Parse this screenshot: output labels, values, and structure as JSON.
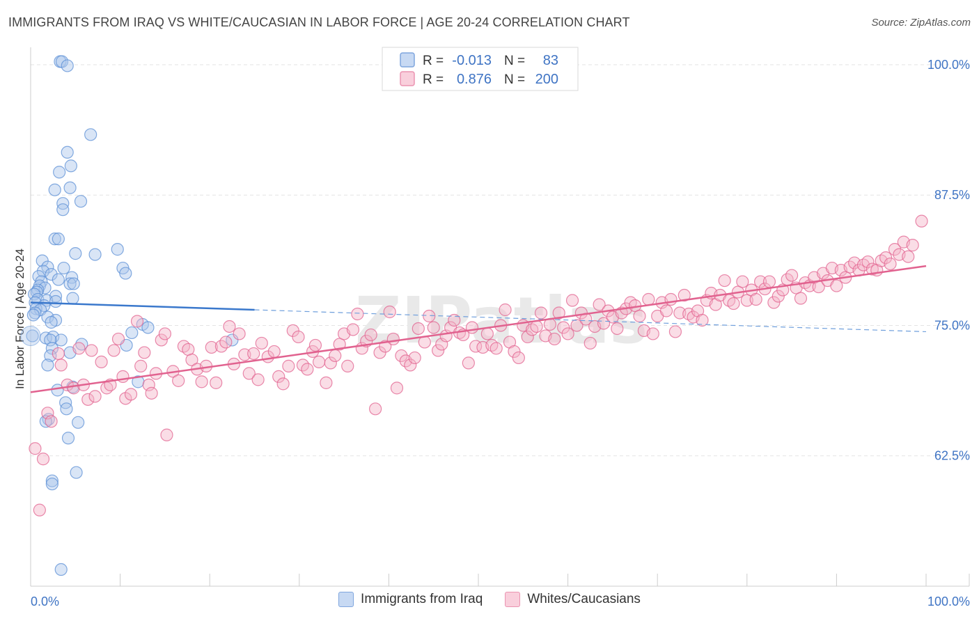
{
  "title": "IMMIGRANTS FROM IRAQ VS WHITE/CAUCASIAN IN LABOR FORCE | AGE 20-24 CORRELATION CHART",
  "source": "Source: ZipAtlas.com",
  "watermark": "ZIPatlas",
  "colors": {
    "blue": "#5b8fd6",
    "blue_fill": "#aac6ec",
    "pink": "#e1628f",
    "pink_fill": "#f4b4c8",
    "axis_label": "#3f74c4"
  },
  "legend_box": [
    {
      "r_label": "R =",
      "r_value": "-0.013",
      "n_label": "N =",
      "n_value": "83"
    },
    {
      "r_label": "R =",
      "r_value": "0.876",
      "n_label": "N =",
      "n_value": "200"
    }
  ],
  "chart_data": {
    "type": "scatter",
    "xlabel": "",
    "ylabel": "In Labor Force | Age 20-24",
    "xlim": [
      0,
      100
    ],
    "ylim": [
      50,
      103
    ],
    "x_tick_labels": [
      "0.0%",
      "100.0%"
    ],
    "y_tick_labels": [
      "100.0%",
      "87.5%",
      "75.0%",
      "62.5%"
    ],
    "y_ticks": [
      100,
      87.5,
      75,
      62.5
    ],
    "legend_position": "top-center",
    "series": [
      {
        "name": "Immigrants from Iraq",
        "color": "#5b8fd6",
        "R": -0.013,
        "N": 83,
        "trend_solid": [
          [
            0,
            77.2
          ],
          [
            25,
            76.5
          ]
        ],
        "trend_dashed": [
          [
            25,
            76.5
          ],
          [
            100,
            74.4
          ]
        ],
        "points": [
          [
            3.3,
            100.3
          ],
          [
            3.5,
            100.3
          ],
          [
            4.1,
            99.9
          ],
          [
            6.7,
            93.3
          ],
          [
            4.1,
            91.6
          ],
          [
            4.5,
            90.3
          ],
          [
            3.2,
            89.7
          ],
          [
            2.7,
            88.0
          ],
          [
            4.4,
            88.2
          ],
          [
            3.6,
            86.7
          ],
          [
            5.6,
            86.9
          ],
          [
            3.6,
            86.1
          ],
          [
            2.7,
            83.3
          ],
          [
            3.1,
            83.3
          ],
          [
            5.0,
            81.9
          ],
          [
            7.2,
            81.8
          ],
          [
            9.7,
            82.3
          ],
          [
            1.3,
            81.2
          ],
          [
            10.3,
            80.5
          ],
          [
            1.9,
            80.6
          ],
          [
            3.7,
            80.5
          ],
          [
            1.4,
            80.2
          ],
          [
            10.6,
            80.0
          ],
          [
            2.3,
            79.9
          ],
          [
            0.9,
            79.7
          ],
          [
            4.6,
            79.6
          ],
          [
            3.1,
            79.4
          ],
          [
            1.2,
            79.2
          ],
          [
            4.4,
            79.0
          ],
          [
            4.8,
            79.0
          ],
          [
            1.0,
            78.8
          ],
          [
            1.6,
            78.6
          ],
          [
            0.8,
            78.4
          ],
          [
            0.7,
            78.2
          ],
          [
            0.4,
            78.0
          ],
          [
            2.8,
            77.8
          ],
          [
            4.7,
            77.6
          ],
          [
            0.8,
            77.5
          ],
          [
            1.8,
            77.4
          ],
          [
            2.8,
            77.3
          ],
          [
            0.5,
            77.2
          ],
          [
            1.5,
            76.9
          ],
          [
            0.6,
            76.6
          ],
          [
            1.1,
            76.5
          ],
          [
            0.5,
            76.2
          ],
          [
            0.3,
            76.0
          ],
          [
            1.9,
            75.8
          ],
          [
            2.8,
            75.5
          ],
          [
            2.3,
            75.3
          ],
          [
            12.5,
            75.1
          ],
          [
            13.1,
            74.8
          ],
          [
            11.3,
            74.3
          ],
          [
            0.2,
            74.0
          ],
          [
            1.7,
            73.8
          ],
          [
            2.5,
            73.9
          ],
          [
            3.4,
            73.6
          ],
          [
            2.2,
            73.6
          ],
          [
            5.7,
            73.2
          ],
          [
            10.7,
            73.1
          ],
          [
            22.5,
            73.6
          ],
          [
            2.4,
            72.8
          ],
          [
            4.4,
            72.4
          ],
          [
            2.2,
            72.1
          ],
          [
            1.9,
            71.2
          ],
          [
            12.0,
            69.6
          ],
          [
            4.7,
            69.1
          ],
          [
            3.0,
            68.8
          ],
          [
            3.9,
            67.6
          ],
          [
            4.0,
            67.0
          ],
          [
            2.0,
            66.0
          ],
          [
            1.7,
            65.8
          ],
          [
            5.3,
            65.7
          ],
          [
            4.2,
            64.2
          ],
          [
            2.4,
            60.1
          ],
          [
            2.4,
            59.8
          ],
          [
            5.1,
            60.9
          ],
          [
            3.4,
            51.6
          ]
        ]
      },
      {
        "name": "Whites/Caucasians",
        "color": "#e1628f",
        "R": 0.876,
        "N": 200,
        "trend_solid": [
          [
            0,
            68.6
          ],
          [
            100,
            80.7
          ]
        ],
        "points": [
          [
            0.5,
            63.2
          ],
          [
            1.4,
            62.2
          ],
          [
            1.0,
            57.3
          ],
          [
            1.9,
            66.6
          ],
          [
            2.3,
            65.8
          ],
          [
            3.1,
            72.3
          ],
          [
            3.4,
            71.2
          ],
          [
            4.1,
            69.3
          ],
          [
            4.8,
            69.0
          ],
          [
            5.4,
            72.8
          ],
          [
            5.9,
            69.3
          ],
          [
            6.4,
            67.9
          ],
          [
            6.8,
            72.6
          ],
          [
            7.2,
            68.2
          ],
          [
            7.9,
            71.5
          ],
          [
            8.5,
            69.0
          ],
          [
            8.9,
            69.3
          ],
          [
            9.3,
            72.6
          ],
          [
            9.8,
            73.7
          ],
          [
            10.3,
            70.1
          ],
          [
            10.6,
            68.0
          ],
          [
            11.2,
            68.4
          ],
          [
            11.9,
            75.4
          ],
          [
            12.3,
            71.1
          ],
          [
            12.7,
            72.4
          ],
          [
            13.2,
            69.3
          ],
          [
            13.5,
            68.5
          ],
          [
            14.0,
            70.4
          ],
          [
            14.6,
            73.6
          ],
          [
            15.0,
            74.2
          ],
          [
            15.2,
            64.5
          ],
          [
            15.9,
            70.6
          ],
          [
            16.5,
            69.7
          ],
          [
            17.1,
            73.0
          ],
          [
            17.6,
            72.7
          ],
          [
            18.0,
            71.7
          ],
          [
            18.6,
            70.8
          ],
          [
            19.1,
            69.6
          ],
          [
            19.6,
            71.1
          ],
          [
            20.2,
            72.9
          ],
          [
            20.7,
            69.5
          ],
          [
            21.3,
            73.0
          ],
          [
            21.8,
            73.4
          ],
          [
            22.2,
            74.9
          ],
          [
            22.7,
            71.3
          ],
          [
            23.3,
            74.2
          ],
          [
            23.9,
            72.2
          ],
          [
            24.4,
            70.4
          ],
          [
            24.9,
            72.3
          ],
          [
            25.4,
            69.8
          ],
          [
            25.8,
            73.3
          ],
          [
            26.5,
            72.0
          ],
          [
            27.2,
            72.5
          ],
          [
            27.7,
            70.1
          ],
          [
            28.2,
            69.4
          ],
          [
            28.8,
            71.1
          ],
          [
            29.3,
            74.5
          ],
          [
            29.9,
            73.9
          ],
          [
            30.4,
            71.2
          ],
          [
            30.9,
            70.8
          ],
          [
            31.5,
            72.5
          ],
          [
            31.8,
            73.1
          ],
          [
            32.2,
            71.5
          ],
          [
            33.0,
            69.5
          ],
          [
            33.5,
            71.4
          ],
          [
            34.0,
            72.1
          ],
          [
            34.5,
            73.2
          ],
          [
            35.0,
            74.2
          ],
          [
            35.4,
            71.1
          ],
          [
            36.0,
            74.6
          ],
          [
            36.5,
            76.1
          ],
          [
            37.0,
            72.8
          ],
          [
            37.5,
            73.5
          ],
          [
            38.0,
            74.1
          ],
          [
            38.5,
            67.0
          ],
          [
            39.0,
            72.4
          ],
          [
            39.6,
            73.0
          ],
          [
            40.1,
            76.3
          ],
          [
            40.5,
            73.7
          ],
          [
            40.9,
            69.0
          ],
          [
            41.4,
            72.1
          ],
          [
            41.9,
            71.6
          ],
          [
            42.4,
            71.2
          ],
          [
            42.9,
            71.9
          ],
          [
            43.3,
            74.7
          ],
          [
            44.0,
            73.4
          ],
          [
            44.5,
            75.9
          ],
          [
            45.0,
            74.8
          ],
          [
            45.5,
            72.6
          ],
          [
            45.9,
            73.2
          ],
          [
            46.4,
            74.0
          ],
          [
            46.9,
            74.8
          ],
          [
            47.3,
            75.5
          ],
          [
            47.9,
            74.3
          ],
          [
            48.3,
            74.1
          ],
          [
            48.9,
            71.4
          ],
          [
            49.3,
            74.8
          ],
          [
            49.7,
            73.0
          ],
          [
            50.5,
            72.9
          ],
          [
            51.0,
            74.2
          ],
          [
            51.5,
            73.1
          ],
          [
            52.0,
            72.8
          ],
          [
            52.5,
            75.0
          ],
          [
            53.0,
            76.5
          ],
          [
            53.5,
            73.4
          ],
          [
            54.0,
            72.5
          ],
          [
            54.5,
            71.9
          ],
          [
            55.0,
            75.0
          ],
          [
            55.5,
            73.9
          ],
          [
            56.0,
            74.6
          ],
          [
            56.5,
            74.9
          ],
          [
            57.0,
            76.2
          ],
          [
            57.5,
            74.0
          ],
          [
            58.0,
            75.1
          ],
          [
            58.5,
            73.7
          ],
          [
            59.0,
            76.2
          ],
          [
            59.5,
            74.8
          ],
          [
            60.0,
            74.2
          ],
          [
            60.5,
            77.4
          ],
          [
            61.0,
            75.0
          ],
          [
            61.5,
            76.2
          ],
          [
            62.0,
            75.6
          ],
          [
            62.5,
            73.3
          ],
          [
            63.0,
            74.9
          ],
          [
            63.5,
            77.0
          ],
          [
            64.0,
            75.2
          ],
          [
            64.5,
            76.4
          ],
          [
            65.0,
            75.8
          ],
          [
            65.5,
            74.7
          ],
          [
            66.0,
            76.2
          ],
          [
            66.5,
            76.6
          ],
          [
            67.0,
            77.2
          ],
          [
            67.5,
            76.9
          ],
          [
            68.0,
            75.9
          ],
          [
            68.5,
            74.5
          ],
          [
            69.0,
            77.5
          ],
          [
            69.5,
            74.2
          ],
          [
            70.0,
            75.9
          ],
          [
            70.5,
            77.2
          ],
          [
            71.0,
            76.4
          ],
          [
            71.5,
            77.5
          ],
          [
            72.0,
            74.4
          ],
          [
            72.5,
            76.2
          ],
          [
            73.0,
            77.9
          ],
          [
            73.5,
            76.1
          ],
          [
            74.0,
            75.8
          ],
          [
            74.5,
            76.4
          ],
          [
            75.0,
            75.5
          ],
          [
            75.5,
            77.4
          ],
          [
            76.0,
            78.1
          ],
          [
            76.5,
            77.0
          ],
          [
            77.0,
            77.9
          ],
          [
            77.5,
            79.3
          ],
          [
            78.0,
            77.4
          ],
          [
            78.5,
            77.1
          ],
          [
            79.0,
            78.2
          ],
          [
            79.5,
            79.2
          ],
          [
            80.0,
            77.4
          ],
          [
            80.5,
            78.4
          ],
          [
            81.0,
            77.5
          ],
          [
            81.5,
            79.2
          ],
          [
            82.0,
            78.5
          ],
          [
            82.5,
            79.2
          ],
          [
            83.0,
            77.2
          ],
          [
            83.5,
            77.8
          ],
          [
            84.0,
            78.4
          ],
          [
            84.5,
            79.4
          ],
          [
            85.0,
            79.8
          ],
          [
            85.5,
            78.6
          ],
          [
            86.0,
            77.6
          ],
          [
            86.5,
            79.1
          ],
          [
            87.0,
            78.8
          ],
          [
            87.5,
            79.6
          ],
          [
            88.0,
            78.7
          ],
          [
            88.5,
            80.0
          ],
          [
            89.0,
            79.3
          ],
          [
            89.5,
            80.5
          ],
          [
            90.0,
            78.8
          ],
          [
            90.5,
            80.3
          ],
          [
            91.0,
            79.6
          ],
          [
            91.5,
            80.6
          ],
          [
            92.0,
            81.0
          ],
          [
            92.5,
            80.3
          ],
          [
            93.0,
            80.8
          ],
          [
            93.5,
            81.1
          ],
          [
            94.0,
            80.4
          ],
          [
            94.5,
            80.3
          ],
          [
            95.0,
            81.2
          ],
          [
            95.5,
            81.5
          ],
          [
            96.0,
            80.9
          ],
          [
            96.5,
            82.3
          ],
          [
            97.0,
            81.8
          ],
          [
            97.5,
            83.0
          ],
          [
            98.0,
            81.6
          ],
          [
            98.5,
            82.7
          ],
          [
            99.5,
            85.0
          ]
        ]
      }
    ]
  },
  "bottom_legend": [
    {
      "label": "Immigrants from Iraq"
    },
    {
      "label": "Whites/Caucasians"
    }
  ]
}
